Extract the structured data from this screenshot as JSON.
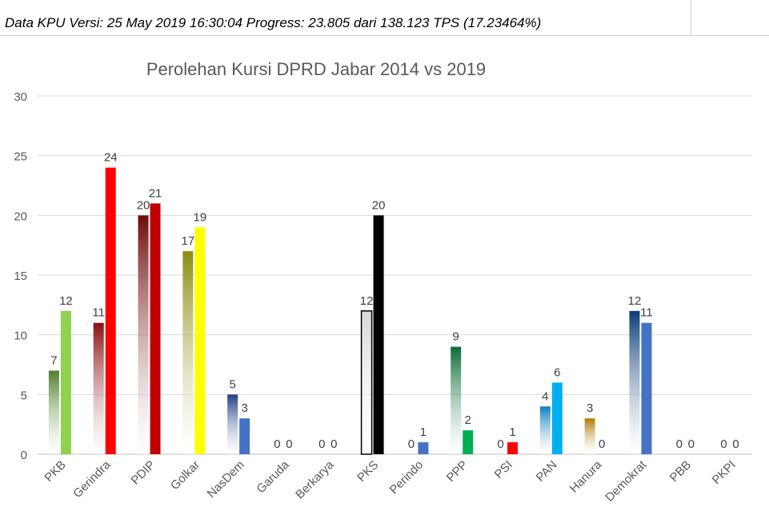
{
  "header": {
    "status_text": "Data KPU Versi: 25 May 2019 16:30:04 Progress: 23.805 dari 138.123 TPS (17.23464%)"
  },
  "chart_data": {
    "type": "bar",
    "title": "Perolehan Kursi DPRD Jabar 2014 vs 2019",
    "xlabel": "",
    "ylabel": "",
    "ylim": [
      0,
      30
    ],
    "yticks": [
      0,
      5,
      10,
      15,
      20,
      25,
      30
    ],
    "grid": true,
    "legend": "none",
    "categories": [
      "PKB",
      "Gerindra",
      "PDIP",
      "Golkar",
      "NasDem",
      "Garuda",
      "Berkarya",
      "PKS",
      "Perindo",
      "PPP",
      "PSI",
      "PAN",
      "Hanura",
      "Demokrat",
      "PBB",
      "PKPI"
    ],
    "series": [
      {
        "values": [
          7,
          11,
          20,
          17,
          5,
          0,
          0,
          12,
          0,
          9,
          0,
          4,
          3,
          12,
          0,
          0
        ]
      },
      {
        "values": [
          12,
          24,
          21,
          19,
          3,
          0,
          0,
          20,
          1,
          2,
          1,
          6,
          0,
          11,
          0,
          0
        ]
      }
    ],
    "colors_2014": [
      "#4f7f2a",
      "#8b0f0f",
      "#6e0a0a",
      "#8c8c12",
      "#1f3f8a",
      "#888888",
      "#888888",
      "#d8d8d8",
      "#2a4f9a",
      "#0a6a35",
      "#cc0000",
      "#0a7fbf",
      "#b07a00",
      "#0a3d75",
      "#888888",
      "#888888"
    ],
    "colors_2019": [
      "#92d050",
      "#ff0000",
      "#c00000",
      "#ffff00",
      "#4472c4",
      "#888888",
      "#888888",
      "#000000",
      "#4472c4",
      "#00b050",
      "#ff0000",
      "#00b0f0",
      "#ffc000",
      "#4472c4",
      "#888888",
      "#888888"
    ]
  }
}
